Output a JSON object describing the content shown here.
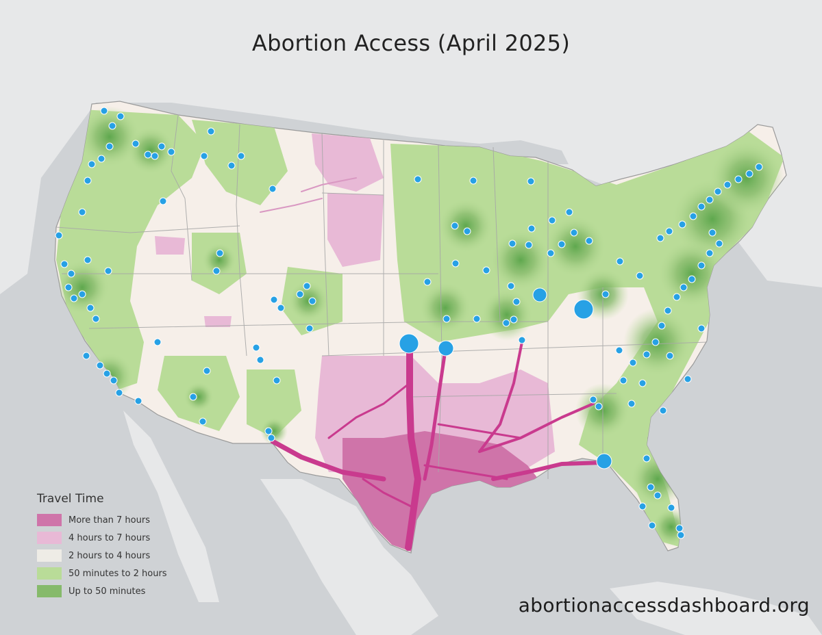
{
  "title": "Abortion Access (April 2025)",
  "legend": {
    "title": "Travel Time",
    "items": [
      {
        "label": "More than 7 hours",
        "color": "#cf74a9"
      },
      {
        "label": "4 hours to 7 hours",
        "color": "#e8b9d6"
      },
      {
        "label": "2 hours to 4 hours",
        "color": "#eeece6"
      },
      {
        "label": "50 minutes to 2 hours",
        "color": "#b9dc98"
      },
      {
        "label": "Up to 50 minutes",
        "color": "#86ba6b"
      }
    ]
  },
  "footer": {
    "website": "abortionaccessdashboard.org"
  },
  "colors": {
    "water": "#cfd2d5",
    "land_background": "#e7e8e9",
    "provider_marker": "#27a1e5",
    "travel_route": "#c93a8e"
  }
}
